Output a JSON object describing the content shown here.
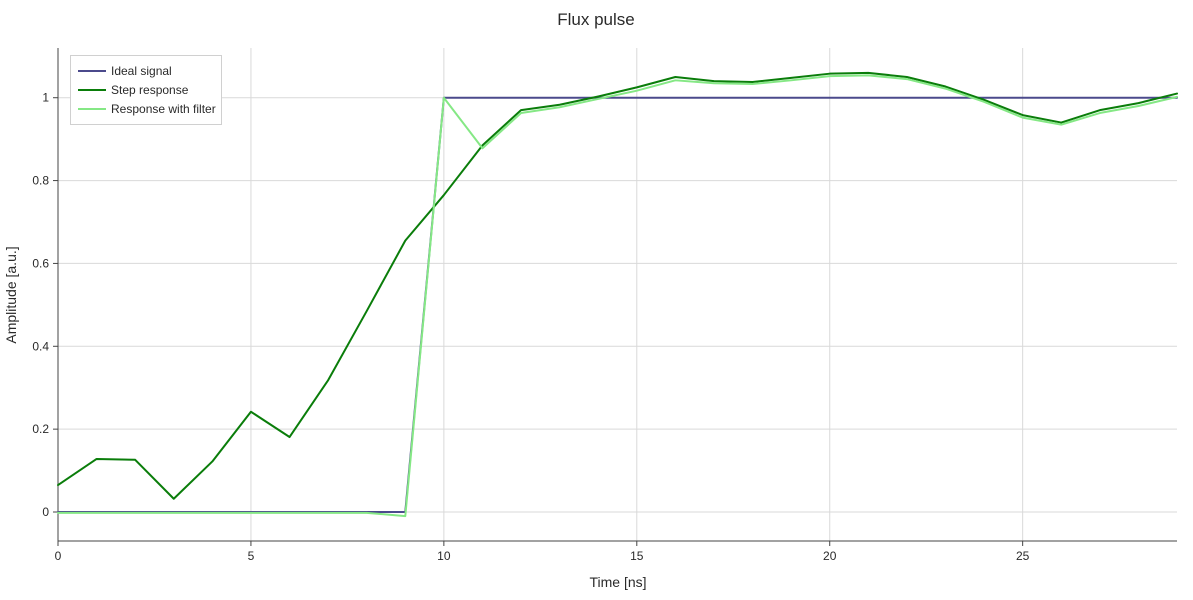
{
  "chart_data": {
    "type": "line",
    "title": "Flux pulse",
    "xlabel": "Time [ns]",
    "ylabel": "Amplitude [a.u.]",
    "xlim": [
      0,
      29
    ],
    "ylim": [
      -0.07,
      1.12
    ],
    "xticks": [
      0,
      5,
      10,
      15,
      20,
      25
    ],
    "yticks": [
      0,
      0.2,
      0.4,
      0.6,
      0.8,
      1
    ],
    "ytick_labels": [
      "0",
      "0.2",
      "0.4",
      "0.6",
      "0.8",
      "1"
    ],
    "grid": true,
    "legend_position": "top-left",
    "x": [
      0,
      1,
      2,
      3,
      4,
      5,
      6,
      7,
      8,
      9,
      10,
      11,
      12,
      13,
      14,
      15,
      16,
      17,
      18,
      19,
      20,
      21,
      22,
      23,
      24,
      25,
      26,
      27,
      28,
      29
    ],
    "series": [
      {
        "name": "Ideal signal",
        "color": "#4b4a8c",
        "values": [
          0,
          0,
          0,
          0,
          0,
          0,
          0,
          0,
          0,
          0,
          1,
          1,
          1,
          1,
          1,
          1,
          1,
          1,
          1,
          1,
          1,
          1,
          1,
          1,
          1,
          1,
          1,
          1,
          1,
          1
        ]
      },
      {
        "name": "Step response",
        "color": "#0a7d0a",
        "values": [
          0.065,
          0.128,
          0.126,
          0.032,
          0.122,
          0.242,
          0.181,
          0.318,
          0.485,
          0.655,
          0.765,
          0.885,
          0.97,
          0.983,
          1.003,
          1.025,
          1.05,
          1.04,
          1.038,
          1.048,
          1.058,
          1.06,
          1.05,
          1.027,
          0.995,
          0.958,
          0.94,
          0.97,
          0.987,
          1.01
        ]
      },
      {
        "name": "Response with filter",
        "color": "#85e885",
        "values": [
          -0.002,
          -0.002,
          -0.002,
          -0.002,
          -0.002,
          -0.002,
          -0.002,
          -0.002,
          -0.002,
          -0.01,
          1.0,
          0.878,
          0.963,
          0.977,
          0.997,
          1.017,
          1.042,
          1.035,
          1.033,
          1.042,
          1.052,
          1.054,
          1.045,
          1.022,
          0.99,
          0.952,
          0.935,
          0.963,
          0.98,
          1.002
        ]
      }
    ]
  }
}
